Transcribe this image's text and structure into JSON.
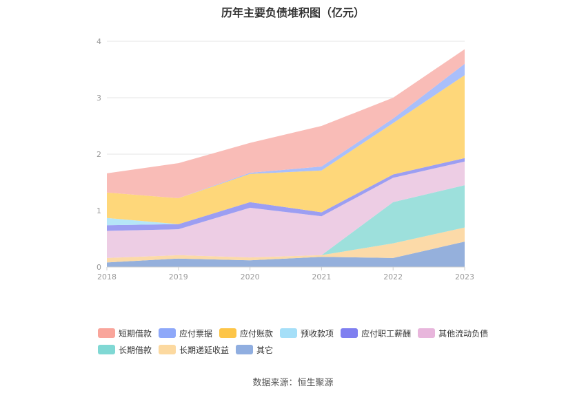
{
  "chart_data": {
    "type": "area",
    "stacked": true,
    "title": "历年主要负债堆积图（亿元）",
    "categories": [
      "2018",
      "2019",
      "2020",
      "2021",
      "2022",
      "2023"
    ],
    "ylim": [
      0,
      4
    ],
    "yticks": [
      "0",
      "1",
      "2",
      "3",
      "4"
    ],
    "series": [
      {
        "name": "其它",
        "color": "#95b0dc",
        "values": [
          0.08,
          0.15,
          0.12,
          0.18,
          0.16,
          0.45
        ]
      },
      {
        "name": "长期递延收益",
        "color": "#fcdaa8",
        "values": [
          0.08,
          0.06,
          0.05,
          0.03,
          0.26,
          0.25
        ]
      },
      {
        "name": "长期借款",
        "color": "#9de0dc",
        "values": [
          0.0,
          0.0,
          0.0,
          0.0,
          0.73,
          0.75
        ]
      },
      {
        "name": "其他流动负债",
        "color": "#edcde4",
        "values": [
          0.48,
          0.46,
          0.88,
          0.69,
          0.43,
          0.42
        ]
      },
      {
        "name": "应付职工薪酬",
        "color": "#9c9ef2",
        "values": [
          0.1,
          0.09,
          0.1,
          0.07,
          0.06,
          0.06
        ]
      },
      {
        "name": "预收款项",
        "color": "#b5e6f8",
        "values": [
          0.13,
          0.0,
          0.0,
          0.0,
          0.0,
          0.0
        ]
      },
      {
        "name": "应付账款",
        "color": "#fed77a",
        "values": [
          0.45,
          0.46,
          0.5,
          0.74,
          0.91,
          1.47
        ]
      },
      {
        "name": "应付票据",
        "color": "#a9bffb",
        "values": [
          0.0,
          0.0,
          0.02,
          0.07,
          0.08,
          0.2
        ]
      },
      {
        "name": "短期借款",
        "color": "#f9bcb7",
        "values": [
          0.34,
          0.62,
          0.53,
          0.72,
          0.37,
          0.26
        ]
      }
    ],
    "legend": [
      {
        "name": "短期借款",
        "color": "#f9a59b"
      },
      {
        "name": "应付票据",
        "color": "#8ea8f9"
      },
      {
        "name": "应付账款",
        "color": "#fdc548"
      },
      {
        "name": "预收款项",
        "color": "#a5dff8"
      },
      {
        "name": "应付职工薪酬",
        "color": "#7f7ff0"
      },
      {
        "name": "其他流动负债",
        "color": "#e8b6dc"
      },
      {
        "name": "长期借款",
        "color": "#80d8d4"
      },
      {
        "name": "长期递延收益",
        "color": "#fcd9a0"
      },
      {
        "name": "其它",
        "color": "#90aee0"
      }
    ],
    "legend_position": "bottom"
  },
  "footer": {
    "source": "数据来源：恒生聚源"
  }
}
